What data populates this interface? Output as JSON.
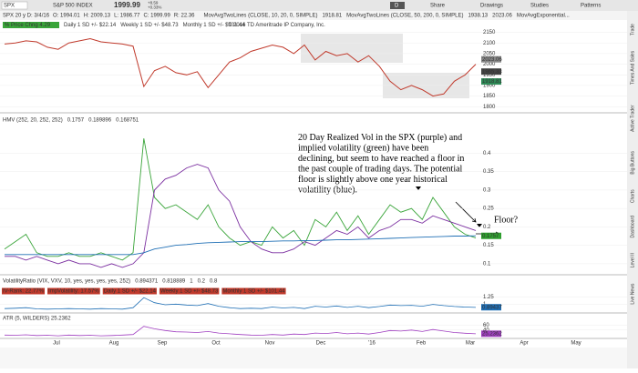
{
  "toolbar": {
    "symbol": "SPX",
    "name": "S&P 500 INDEX",
    "last": "1999.99",
    "change": "+8.59",
    "change_pct": "+0.33%",
    "period": "D",
    "buttons": [
      "Share",
      "Drawings",
      "Studies",
      "Patterns"
    ]
  },
  "info_row": [
    "SPX 20 y D: 3/4/16",
    "O: 1994.01",
    "H: 2009.13",
    "L: 1986.77",
    "C: 1999.99",
    "R: 22.36"
  ],
  "info_row_studies": [
    {
      "text": "MovAvgTwoLines (CLOSE, 10, 20, 0, SIMPLE)",
      "color": "#b8860b"
    },
    {
      "text": "1918.81",
      "color": "#333"
    },
    {
      "text": "MovAvgTwoLines (CLOSE, 50, 200, 0, SIMPLE)",
      "color": "#a0522d"
    },
    {
      "text": "1938.13",
      "color": "#333"
    },
    {
      "text": "2023.06",
      "color": "#333"
    },
    {
      "text": "MovAvgExponential...",
      "color": "#d4a017"
    }
  ],
  "price_panel": {
    "badge": "% Price Chng 4.29",
    "sd": [
      {
        "text": "Daily 1 SD +/- $22.14",
        "color": "#d4a017"
      },
      {
        "text": "Weekly 1 SD +/- $48.73",
        "color": "#d4a017"
      },
      {
        "text": "Monthly 1 SD +/- $101.44",
        "color": "#d4a017"
      }
    ],
    "copyright": "© 2016 TD Ameritrade IP Company, Inc.",
    "ylim": [
      1780,
      2165
    ],
    "yticks": [
      2150,
      2100,
      2050,
      2000,
      1950,
      1900,
      1850,
      1800
    ],
    "price_badges": [
      {
        "value": 2023.06,
        "label": "2023.06"
      },
      {
        "value": 1965.33,
        "label": "1965.33"
      },
      {
        "value": 1918.81,
        "label": "1918.81"
      }
    ],
    "close": {
      "color": "#c0392b",
      "values": [
        2095,
        2100,
        2110,
        2105,
        2080,
        2070,
        2100,
        2110,
        2120,
        2105,
        2100,
        2095,
        2085,
        1895,
        1970,
        1990,
        1960,
        1950,
        1965,
        1890,
        1950,
        2010,
        2030,
        2060,
        2075,
        2090,
        2080,
        2050,
        2090,
        2020,
        2060,
        2040,
        2050,
        2010,
        2040,
        1990,
        1920,
        1880,
        1900,
        1880,
        1850,
        1860,
        1920,
        1950,
        2000
      ]
    }
  },
  "vol_panel": {
    "legend": [
      {
        "text": "HMV (252, 20, 252, 252)",
        "color": "#555"
      },
      {
        "text": "0.1757",
        "color": "#1f6fb5"
      },
      {
        "text": "0.189896",
        "color": "#7b2fa0"
      },
      {
        "text": "0.168751",
        "color": "#2e9e2e"
      }
    ],
    "ylim": [
      0.08,
      0.48
    ],
    "yticks": [
      0.4,
      0.35,
      0.3,
      0.25,
      0.2,
      0.15,
      0.1
    ],
    "badge": {
      "value": 0.1757,
      "label": "0.1757"
    },
    "series": [
      {
        "name": "implied",
        "color": "#3aa53a",
        "values": [
          0.14,
          0.16,
          0.18,
          0.13,
          0.12,
          0.12,
          0.13,
          0.12,
          0.12,
          0.13,
          0.12,
          0.11,
          0.13,
          0.44,
          0.28,
          0.25,
          0.26,
          0.24,
          0.22,
          0.26,
          0.2,
          0.17,
          0.15,
          0.16,
          0.15,
          0.2,
          0.17,
          0.19,
          0.15,
          0.22,
          0.2,
          0.24,
          0.19,
          0.23,
          0.18,
          0.22,
          0.26,
          0.24,
          0.25,
          0.22,
          0.28,
          0.24,
          0.2,
          0.18,
          0.17
        ]
      },
      {
        "name": "realized",
        "color": "#7b2fa0",
        "values": [
          0.12,
          0.12,
          0.11,
          0.12,
          0.11,
          0.1,
          0.11,
          0.1,
          0.1,
          0.09,
          0.1,
          0.09,
          0.1,
          0.13,
          0.3,
          0.33,
          0.34,
          0.36,
          0.37,
          0.36,
          0.3,
          0.27,
          0.2,
          0.16,
          0.14,
          0.13,
          0.13,
          0.14,
          0.16,
          0.15,
          0.17,
          0.19,
          0.18,
          0.2,
          0.17,
          0.19,
          0.2,
          0.22,
          0.22,
          0.21,
          0.23,
          0.22,
          0.21,
          0.2,
          0.19
        ]
      },
      {
        "name": "historical",
        "color": "#1f6fb5",
        "values": [
          0.125,
          0.125,
          0.125,
          0.125,
          0.125,
          0.125,
          0.125,
          0.125,
          0.125,
          0.125,
          0.125,
          0.125,
          0.125,
          0.13,
          0.14,
          0.145,
          0.15,
          0.152,
          0.155,
          0.157,
          0.158,
          0.159,
          0.16,
          0.16,
          0.16,
          0.161,
          0.162,
          0.162,
          0.163,
          0.163,
          0.164,
          0.165,
          0.165,
          0.166,
          0.167,
          0.168,
          0.169,
          0.17,
          0.171,
          0.172,
          0.173,
          0.174,
          0.175,
          0.175,
          0.1757
        ]
      }
    ],
    "annotation": "20 Day Realized Vol in the SPX (purple)  and implied volatility (green) have been declining, but seem to have reached a floor in the past couple of trading days. The potential floor is slightly above one year historical volatility (blue).",
    "floor_label": "Floor?"
  },
  "ratio_panel": {
    "legend": [
      {
        "text": "VolatilityRatio (VIX, VXV, 10, yes, yes, yes, yes, 252)",
        "color": "#555"
      },
      {
        "text": "0.894371",
        "color": "#1f6fb5"
      },
      {
        "text": "0.818889",
        "color": "#555"
      },
      {
        "text": "1",
        "color": "#555"
      },
      {
        "text": "0.2",
        "color": "#d4a017"
      },
      {
        "text": "0.8",
        "color": "#555"
      }
    ],
    "row": [
      {
        "text": "IV-Rank: 22.77%",
        "color": "#fff",
        "bg": "#c0392b"
      },
      {
        "text": "ImpVolatility: 17.57%",
        "color": "#fff",
        "bg": "#c0392b"
      },
      {
        "text": "Daily 1 SD +/- $22.14",
        "color": "#fff",
        "bg": "#c0392b"
      },
      {
        "text": "Weekly 1 SD +/- $48.73",
        "color": "#fff",
        "bg": "#c0392b"
      },
      {
        "text": "Monthly 1 SD +/- $101.44",
        "color": "#fff",
        "bg": "#c0392b"
      }
    ],
    "ylim": [
      0.7,
      1.32
    ],
    "yticks": [
      1.25,
      1
    ],
    "badge": {
      "value": 0.89437,
      "label": "0.89437"
    },
    "ratio": {
      "color": "#1f6fb5",
      "values": [
        0.85,
        0.86,
        0.88,
        0.84,
        0.83,
        0.84,
        0.85,
        0.84,
        0.83,
        0.85,
        0.84,
        0.83,
        0.88,
        1.22,
        1.05,
        0.98,
        1.0,
        0.97,
        0.95,
        1.02,
        0.93,
        0.88,
        0.85,
        0.86,
        0.85,
        0.9,
        0.87,
        0.89,
        0.85,
        0.93,
        0.9,
        0.94,
        0.89,
        0.93,
        0.88,
        0.92,
        0.97,
        0.95,
        0.96,
        0.93,
        0.99,
        0.95,
        0.92,
        0.9,
        0.89
      ]
    }
  },
  "atr_panel": {
    "legend": "ATR (5, WILDERS) 25.2362",
    "ylim": [
      10,
      72
    ],
    "yticks": [
      60,
      40
    ],
    "badge": {
      "value": 25.2362,
      "label": "25.2362"
    },
    "atr": {
      "color": "#a03fc0",
      "values": [
        20,
        19,
        21,
        18,
        19,
        17,
        20,
        18,
        19,
        17,
        18,
        20,
        22,
        55,
        45,
        38,
        33,
        32,
        30,
        34,
        28,
        25,
        22,
        20,
        19,
        22,
        20,
        24,
        22,
        28,
        26,
        30,
        25,
        28,
        24,
        30,
        38,
        36,
        40,
        34,
        42,
        36,
        30,
        27,
        25
      ]
    }
  },
  "x_labels": [
    "Jul",
    "Aug",
    "Sep",
    "Oct",
    "Nov",
    "Dec",
    "'16",
    "Feb",
    "Mar",
    "Apr",
    "May"
  ],
  "side_tabs": [
    "Trade",
    "Times And Sales",
    "Active Trader",
    "Big Buttons",
    "Charts",
    "Dashboard",
    "Level II",
    "Live News"
  ]
}
